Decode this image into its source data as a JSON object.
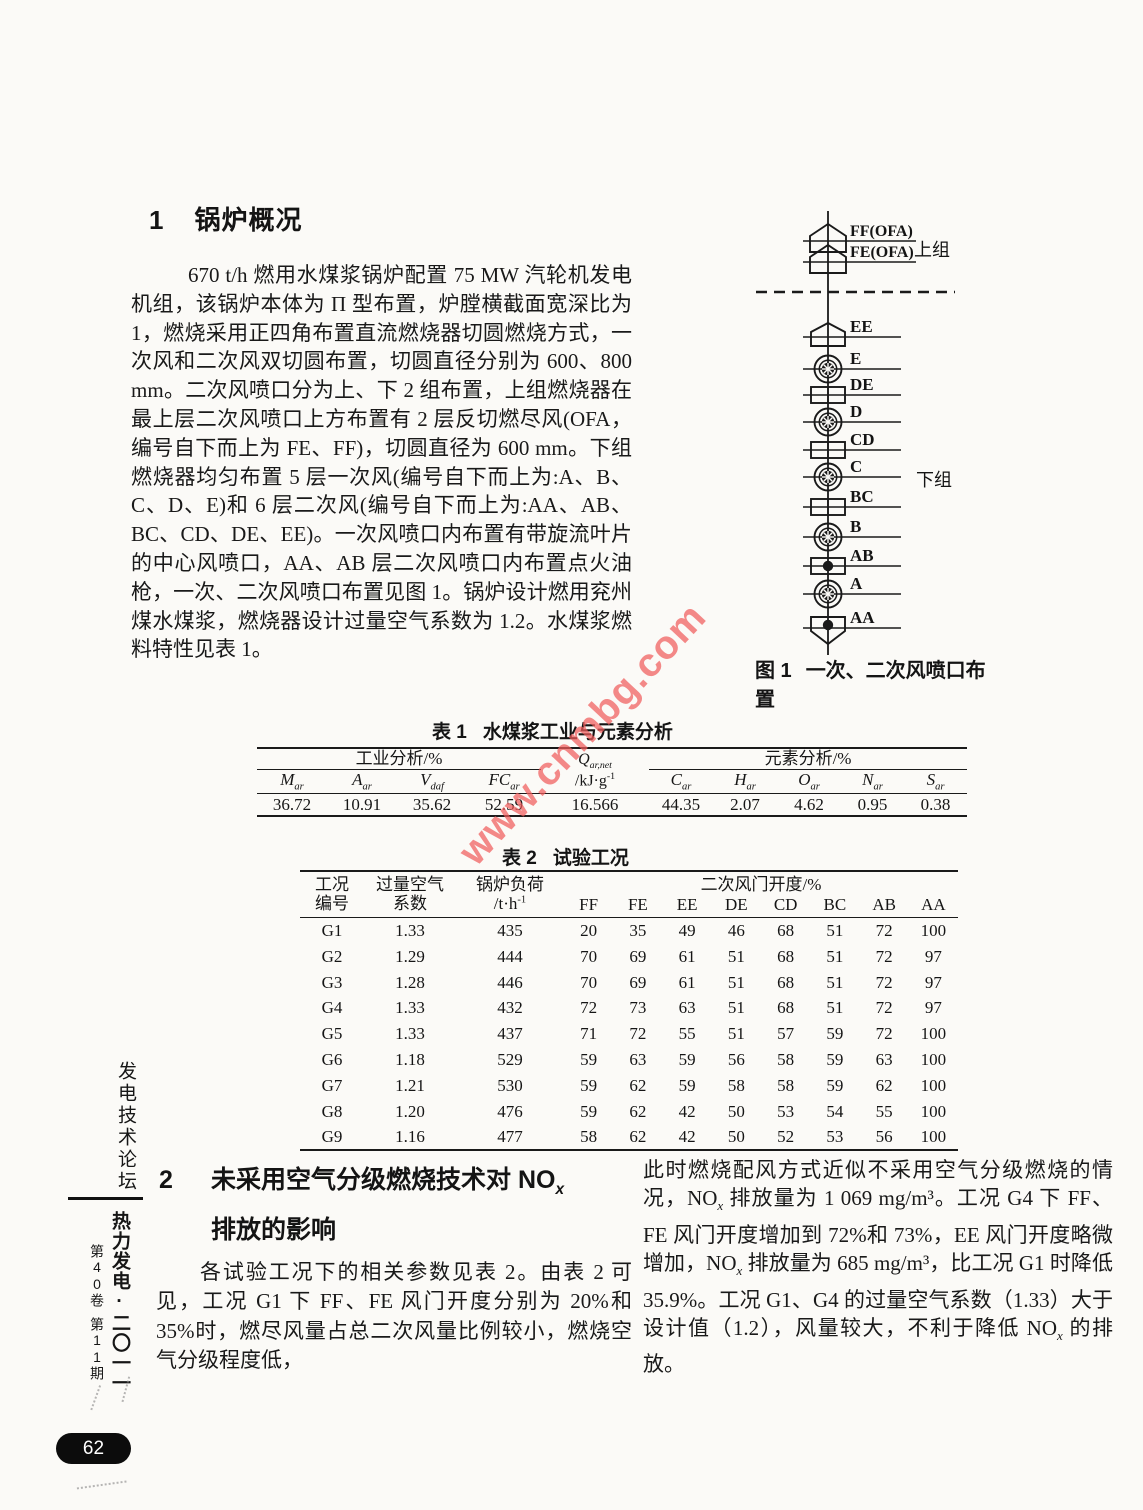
{
  "watermark": {
    "text": "www.cnmbg.com",
    "color": "#f05c5c"
  },
  "sidebar": {
    "forum": "发电技术论坛",
    "journal": "热力发电·二〇一一",
    "volume": "第40卷",
    "issue": "第11期"
  },
  "page_badge": "62",
  "section1": {
    "number": "1",
    "title": "锅炉概况",
    "paragraph": "670 t/h 燃用水煤浆锅炉配置 75 MW 汽轮机发电机组，该锅炉本体为 Π 型布置，炉膛横截面宽深比为 1，燃烧采用正四角布置直流燃烧器切圆燃烧方式，一次风和二次风双切圆布置，切圆直径分别为 600、800 mm。二次风喷口分为上、下 2 组布置，上组燃烧器在最上层二次风喷口上方布置有 2 层反切燃尽风(OFA，编号自下而上为 FE、FF)，切圆直径为 600 mm。下组燃烧器均匀布置 5 层一次风(编号自下而上为:A、B、C、D、E)和 6 层二次风(编号自下而上为:AA、AB、BC、CD、DE、EE)。一次风喷口内布置有带旋流叶片的中心风喷口，AA、AB 层二次风喷口内布置点火油枪，一次、二次风喷口布置见图 1。锅炉设计燃用兖州煤水煤浆，燃烧器设计过量空气系数为 1.2。水煤浆燃料特性见表 1。"
  },
  "figure1": {
    "caption_label": "图 1",
    "caption": "一次、二次风喷口布置",
    "upper_group": "上组",
    "lower_group": "下组",
    "nozzles": [
      {
        "label": "FF(OFA)",
        "type": "ofa"
      },
      {
        "label": "FE(OFA)",
        "type": "ofa"
      },
      {
        "label": "EE",
        "type": "house"
      },
      {
        "label": "E",
        "type": "swirl"
      },
      {
        "label": "DE",
        "type": "rect"
      },
      {
        "label": "D",
        "type": "swirl"
      },
      {
        "label": "CD",
        "type": "rect"
      },
      {
        "label": "C",
        "type": "swirl"
      },
      {
        "label": "BC",
        "type": "rect"
      },
      {
        "label": "B",
        "type": "swirl"
      },
      {
        "label": "AB",
        "type": "rect-dot"
      },
      {
        "label": "A",
        "type": "swirl"
      },
      {
        "label": "AA",
        "type": "house-down-dot"
      }
    ]
  },
  "table1": {
    "caption_label": "表 1",
    "caption": "水煤浆工业与元素分析",
    "proximate_header": "工业分析/%",
    "ultimate_header": "元素分析/%",
    "q_line1": "Q[ar,net]",
    "q_line2": "/kJ·g{-1}",
    "proximate_cols": [
      "M[ar]",
      "A[ar]",
      "V[daf]",
      "FC[ar]"
    ],
    "ultimate_cols": [
      "C[ar]",
      "H[ar]",
      "O[ar]",
      "N[ar]",
      "S[ar]"
    ],
    "proximate_values": [
      "36.72",
      "10.91",
      "35.62",
      "52.59"
    ],
    "q_value": "16.566",
    "ultimate_values": [
      "44.35",
      "2.07",
      "4.62",
      "0.95",
      "0.38"
    ]
  },
  "table2": {
    "caption_label": "表 2",
    "caption": "试验工况",
    "header_case": [
      "工况",
      "编号"
    ],
    "header_excess": [
      "过量空气",
      "系数"
    ],
    "header_load": [
      "锅炉负荷",
      "/t·h{-1}"
    ],
    "group_header": "二次风门开度/%",
    "damper_cols": [
      "FF",
      "FE",
      "EE",
      "DE",
      "CD",
      "BC",
      "AB",
      "AA"
    ],
    "rows": [
      [
        "G1",
        "1.33",
        "435",
        "20",
        "35",
        "49",
        "46",
        "68",
        "51",
        "72",
        "100"
      ],
      [
        "G2",
        "1.29",
        "444",
        "70",
        "69",
        "61",
        "51",
        "68",
        "51",
        "72",
        "97"
      ],
      [
        "G3",
        "1.28",
        "446",
        "70",
        "69",
        "61",
        "51",
        "68",
        "51",
        "72",
        "97"
      ],
      [
        "G4",
        "1.33",
        "432",
        "72",
        "73",
        "63",
        "51",
        "68",
        "51",
        "72",
        "97"
      ],
      [
        "G5",
        "1.33",
        "437",
        "71",
        "72",
        "55",
        "51",
        "57",
        "59",
        "72",
        "100"
      ],
      [
        "G6",
        "1.18",
        "529",
        "59",
        "63",
        "59",
        "56",
        "58",
        "59",
        "63",
        "100"
      ],
      [
        "G7",
        "1.21",
        "530",
        "59",
        "62",
        "59",
        "58",
        "58",
        "59",
        "62",
        "100"
      ],
      [
        "G8",
        "1.20",
        "476",
        "59",
        "62",
        "42",
        "50",
        "53",
        "54",
        "55",
        "100"
      ],
      [
        "G9",
        "1.16",
        "477",
        "58",
        "62",
        "42",
        "50",
        "52",
        "53",
        "56",
        "100"
      ]
    ]
  },
  "section2": {
    "number": "2",
    "title_line1": "未采用空气分级燃烧技术对 NO[x]",
    "title_line2": "排放的影响",
    "paragraph_left": "各试验工况下的相关参数见表 2。由表 2 可见，工况 G1 下 FF、FE 风门开度分别为 20%和 35%时，燃尽风量占总二次风量比例较小，燃烧空气分级程度低，",
    "paragraph_right": "此时燃烧配风方式近似不采用空气分级燃烧的情况，NO[x] 排放量为 1 069 mg/m³。工况 G4 下 FF、FE 风门开度增加到 72%和 73%，EE 风门开度略微增加，NO[x] 排放量为 685 mg/m³，比工况 G1 时降低 35.9%。工况 G1、G4 的过量空气系数（1.33）大于设计值（1.2），风量较大，不利于降低 NO[x] 的排放。"
  }
}
